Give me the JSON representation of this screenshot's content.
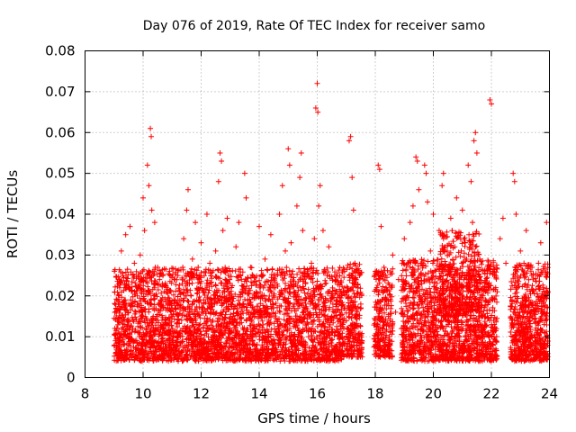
{
  "chart_data": {
    "type": "scatter",
    "title": "Day 076 of 2019, Rate Of TEC Index for receiver samo",
    "xlabel": "GPS time / hours",
    "ylabel": "ROTI / TECUs",
    "xlim": [
      8,
      24
    ],
    "ylim": [
      0,
      0.08
    ],
    "x_ticks": [
      8,
      10,
      12,
      14,
      16,
      18,
      20,
      22,
      24
    ],
    "x_tick_labels": [
      "8",
      "10",
      "12",
      "14",
      "16",
      "18",
      "20",
      "22",
      "24"
    ],
    "y_ticks": [
      0,
      0.01,
      0.02,
      0.03,
      0.04,
      0.05,
      0.06,
      0.07,
      0.08
    ],
    "y_tick_labels": [
      "0",
      "0.01",
      "0.02",
      "0.03",
      "0.04",
      "0.05",
      "0.06",
      "0.07",
      "0.08"
    ],
    "grid": true,
    "marker": "+",
    "marker_color": "#ff0000",
    "series": [
      {
        "name": "ROTI",
        "points": [
          [
            9.05,
            0.006
          ],
          [
            9.1,
            0.012
          ],
          [
            9.15,
            0.018
          ],
          [
            9.2,
            0.008
          ],
          [
            9.25,
            0.031
          ],
          [
            9.3,
            0.025
          ],
          [
            9.35,
            0.01
          ],
          [
            9.4,
            0.035
          ],
          [
            9.45,
            0.014
          ],
          [
            9.5,
            0.022
          ],
          [
            9.55,
            0.037
          ],
          [
            9.6,
            0.009
          ],
          [
            9.7,
            0.028
          ],
          [
            9.75,
            0.016
          ],
          [
            9.8,
            0.02
          ],
          [
            9.85,
            0.011
          ],
          [
            9.9,
            0.03
          ],
          [
            9.95,
            0.024
          ],
          [
            10.0,
            0.044
          ],
          [
            10.05,
            0.036
          ],
          [
            10.1,
            0.012
          ],
          [
            10.15,
            0.052
          ],
          [
            10.2,
            0.047
          ],
          [
            10.25,
            0.061
          ],
          [
            10.28,
            0.059
          ],
          [
            10.3,
            0.041
          ],
          [
            10.35,
            0.015
          ],
          [
            10.4,
            0.038
          ],
          [
            10.5,
            0.027
          ],
          [
            10.55,
            0.008
          ],
          [
            10.6,
            0.019
          ],
          [
            10.7,
            0.013
          ],
          [
            10.8,
            0.022
          ],
          [
            10.9,
            0.009
          ],
          [
            11.0,
            0.017
          ],
          [
            11.1,
            0.011
          ],
          [
            11.2,
            0.025
          ],
          [
            11.3,
            0.006
          ],
          [
            11.4,
            0.034
          ],
          [
            11.5,
            0.041
          ],
          [
            11.55,
            0.046
          ],
          [
            11.6,
            0.016
          ],
          [
            11.7,
            0.029
          ],
          [
            11.8,
            0.038
          ],
          [
            11.9,
            0.012
          ],
          [
            12.0,
            0.033
          ],
          [
            12.1,
            0.021
          ],
          [
            12.2,
            0.04
          ],
          [
            12.3,
            0.028
          ],
          [
            12.4,
            0.014
          ],
          [
            12.5,
            0.031
          ],
          [
            12.6,
            0.048
          ],
          [
            12.65,
            0.055
          ],
          [
            12.7,
            0.053
          ],
          [
            12.75,
            0.036
          ],
          [
            12.8,
            0.019
          ],
          [
            12.9,
            0.039
          ],
          [
            13.0,
            0.026
          ],
          [
            13.1,
            0.015
          ],
          [
            13.2,
            0.032
          ],
          [
            13.3,
            0.038
          ],
          [
            13.4,
            0.009
          ],
          [
            13.5,
            0.05
          ],
          [
            13.55,
            0.044
          ],
          [
            13.6,
            0.018
          ],
          [
            13.7,
            0.027
          ],
          [
            13.8,
            0.012
          ],
          [
            13.9,
            0.021
          ],
          [
            14.0,
            0.037
          ],
          [
            14.1,
            0.008
          ],
          [
            14.2,
            0.029
          ],
          [
            14.3,
            0.017
          ],
          [
            14.4,
            0.035
          ],
          [
            14.5,
            0.022
          ],
          [
            14.6,
            0.011
          ],
          [
            14.7,
            0.04
          ],
          [
            14.8,
            0.047
          ],
          [
            14.9,
            0.031
          ],
          [
            15.0,
            0.056
          ],
          [
            15.05,
            0.052
          ],
          [
            15.1,
            0.033
          ],
          [
            15.2,
            0.014
          ],
          [
            15.3,
            0.042
          ],
          [
            15.4,
            0.049
          ],
          [
            15.45,
            0.055
          ],
          [
            15.5,
            0.036
          ],
          [
            15.6,
            0.023
          ],
          [
            15.7,
            0.01
          ],
          [
            15.8,
            0.028
          ],
          [
            15.9,
            0.034
          ],
          [
            15.95,
            0.066
          ],
          [
            16.0,
            0.072
          ],
          [
            16.02,
            0.065
          ],
          [
            16.05,
            0.042
          ],
          [
            16.1,
            0.047
          ],
          [
            16.2,
            0.036
          ],
          [
            16.3,
            0.019
          ],
          [
            16.4,
            0.032
          ],
          [
            16.5,
            0.015
          ],
          [
            16.6,
            0.025
          ],
          [
            16.7,
            0.011
          ],
          [
            16.8,
            0.021
          ],
          [
            17.1,
            0.058
          ],
          [
            17.15,
            0.059
          ],
          [
            17.2,
            0.049
          ],
          [
            17.25,
            0.041
          ],
          [
            17.3,
            0.028
          ],
          [
            17.35,
            0.015
          ],
          [
            17.4,
            0.022
          ],
          [
            17.45,
            0.009
          ],
          [
            17.5,
            0.018
          ],
          [
            18.0,
            0.014
          ],
          [
            18.05,
            0.022
          ],
          [
            18.1,
            0.052
          ],
          [
            18.15,
            0.051
          ],
          [
            18.2,
            0.037
          ],
          [
            18.25,
            0.011
          ],
          [
            18.3,
            0.027
          ],
          [
            18.4,
            0.018
          ],
          [
            18.5,
            0.009
          ],
          [
            18.6,
            0.03
          ],
          [
            18.7,
            0.016
          ],
          [
            18.8,
            0.024
          ],
          [
            18.9,
            0.012
          ],
          [
            19.0,
            0.034
          ],
          [
            19.1,
            0.02
          ],
          [
            19.2,
            0.038
          ],
          [
            19.3,
            0.042
          ],
          [
            19.4,
            0.054
          ],
          [
            19.45,
            0.053
          ],
          [
            19.5,
            0.046
          ],
          [
            19.6,
            0.028
          ],
          [
            19.7,
            0.052
          ],
          [
            19.75,
            0.05
          ],
          [
            19.8,
            0.043
          ],
          [
            19.9,
            0.031
          ],
          [
            20.0,
            0.04
          ],
          [
            20.1,
            0.022
          ],
          [
            20.2,
            0.036
          ],
          [
            20.3,
            0.047
          ],
          [
            20.35,
            0.05
          ],
          [
            20.4,
            0.032
          ],
          [
            20.5,
            0.027
          ],
          [
            20.6,
            0.039
          ],
          [
            20.7,
            0.018
          ],
          [
            20.8,
            0.044
          ],
          [
            20.9,
            0.025
          ],
          [
            21.0,
            0.041
          ],
          [
            21.1,
            0.033
          ],
          [
            21.2,
            0.052
          ],
          [
            21.3,
            0.048
          ],
          [
            21.35,
            0.038
          ],
          [
            21.4,
            0.058
          ],
          [
            21.45,
            0.06
          ],
          [
            21.5,
            0.055
          ],
          [
            21.6,
            0.029
          ],
          [
            21.7,
            0.015
          ],
          [
            21.8,
            0.019
          ],
          [
            21.9,
            0.011
          ],
          [
            21.95,
            0.068
          ],
          [
            22.0,
            0.067
          ],
          [
            22.05,
            0.026
          ],
          [
            22.1,
            0.013
          ],
          [
            22.2,
            0.021
          ],
          [
            22.3,
            0.034
          ],
          [
            22.4,
            0.039
          ],
          [
            22.5,
            0.028
          ],
          [
            22.7,
            0.014
          ],
          [
            22.75,
            0.05
          ],
          [
            22.8,
            0.048
          ],
          [
            22.85,
            0.04
          ],
          [
            22.9,
            0.022
          ],
          [
            23.0,
            0.031
          ],
          [
            23.1,
            0.012
          ],
          [
            23.2,
            0.036
          ],
          [
            23.3,
            0.019
          ],
          [
            23.4,
            0.027
          ],
          [
            23.5,
            0.009
          ],
          [
            23.6,
            0.025
          ],
          [
            23.7,
            0.033
          ],
          [
            23.8,
            0.016
          ],
          [
            23.9,
            0.038
          ]
        ],
        "dense_bands": [
          {
            "x": [
              9.0,
              16.95
            ],
            "y": [
              0.004,
              0.027
            ],
            "count": 3200
          },
          {
            "x": [
              17.0,
              17.55
            ],
            "y": [
              0.005,
              0.028
            ],
            "count": 240
          },
          {
            "x": [
              17.95,
              18.6
            ],
            "y": [
              0.005,
              0.027
            ],
            "count": 260
          },
          {
            "x": [
              18.9,
              22.2
            ],
            "y": [
              0.004,
              0.029
            ],
            "count": 1500
          },
          {
            "x": [
              20.2,
              21.6
            ],
            "y": [
              0.015,
              0.036
            ],
            "count": 300
          },
          {
            "x": [
              22.65,
              23.95
            ],
            "y": [
              0.004,
              0.028
            ],
            "count": 650
          }
        ]
      }
    ]
  }
}
